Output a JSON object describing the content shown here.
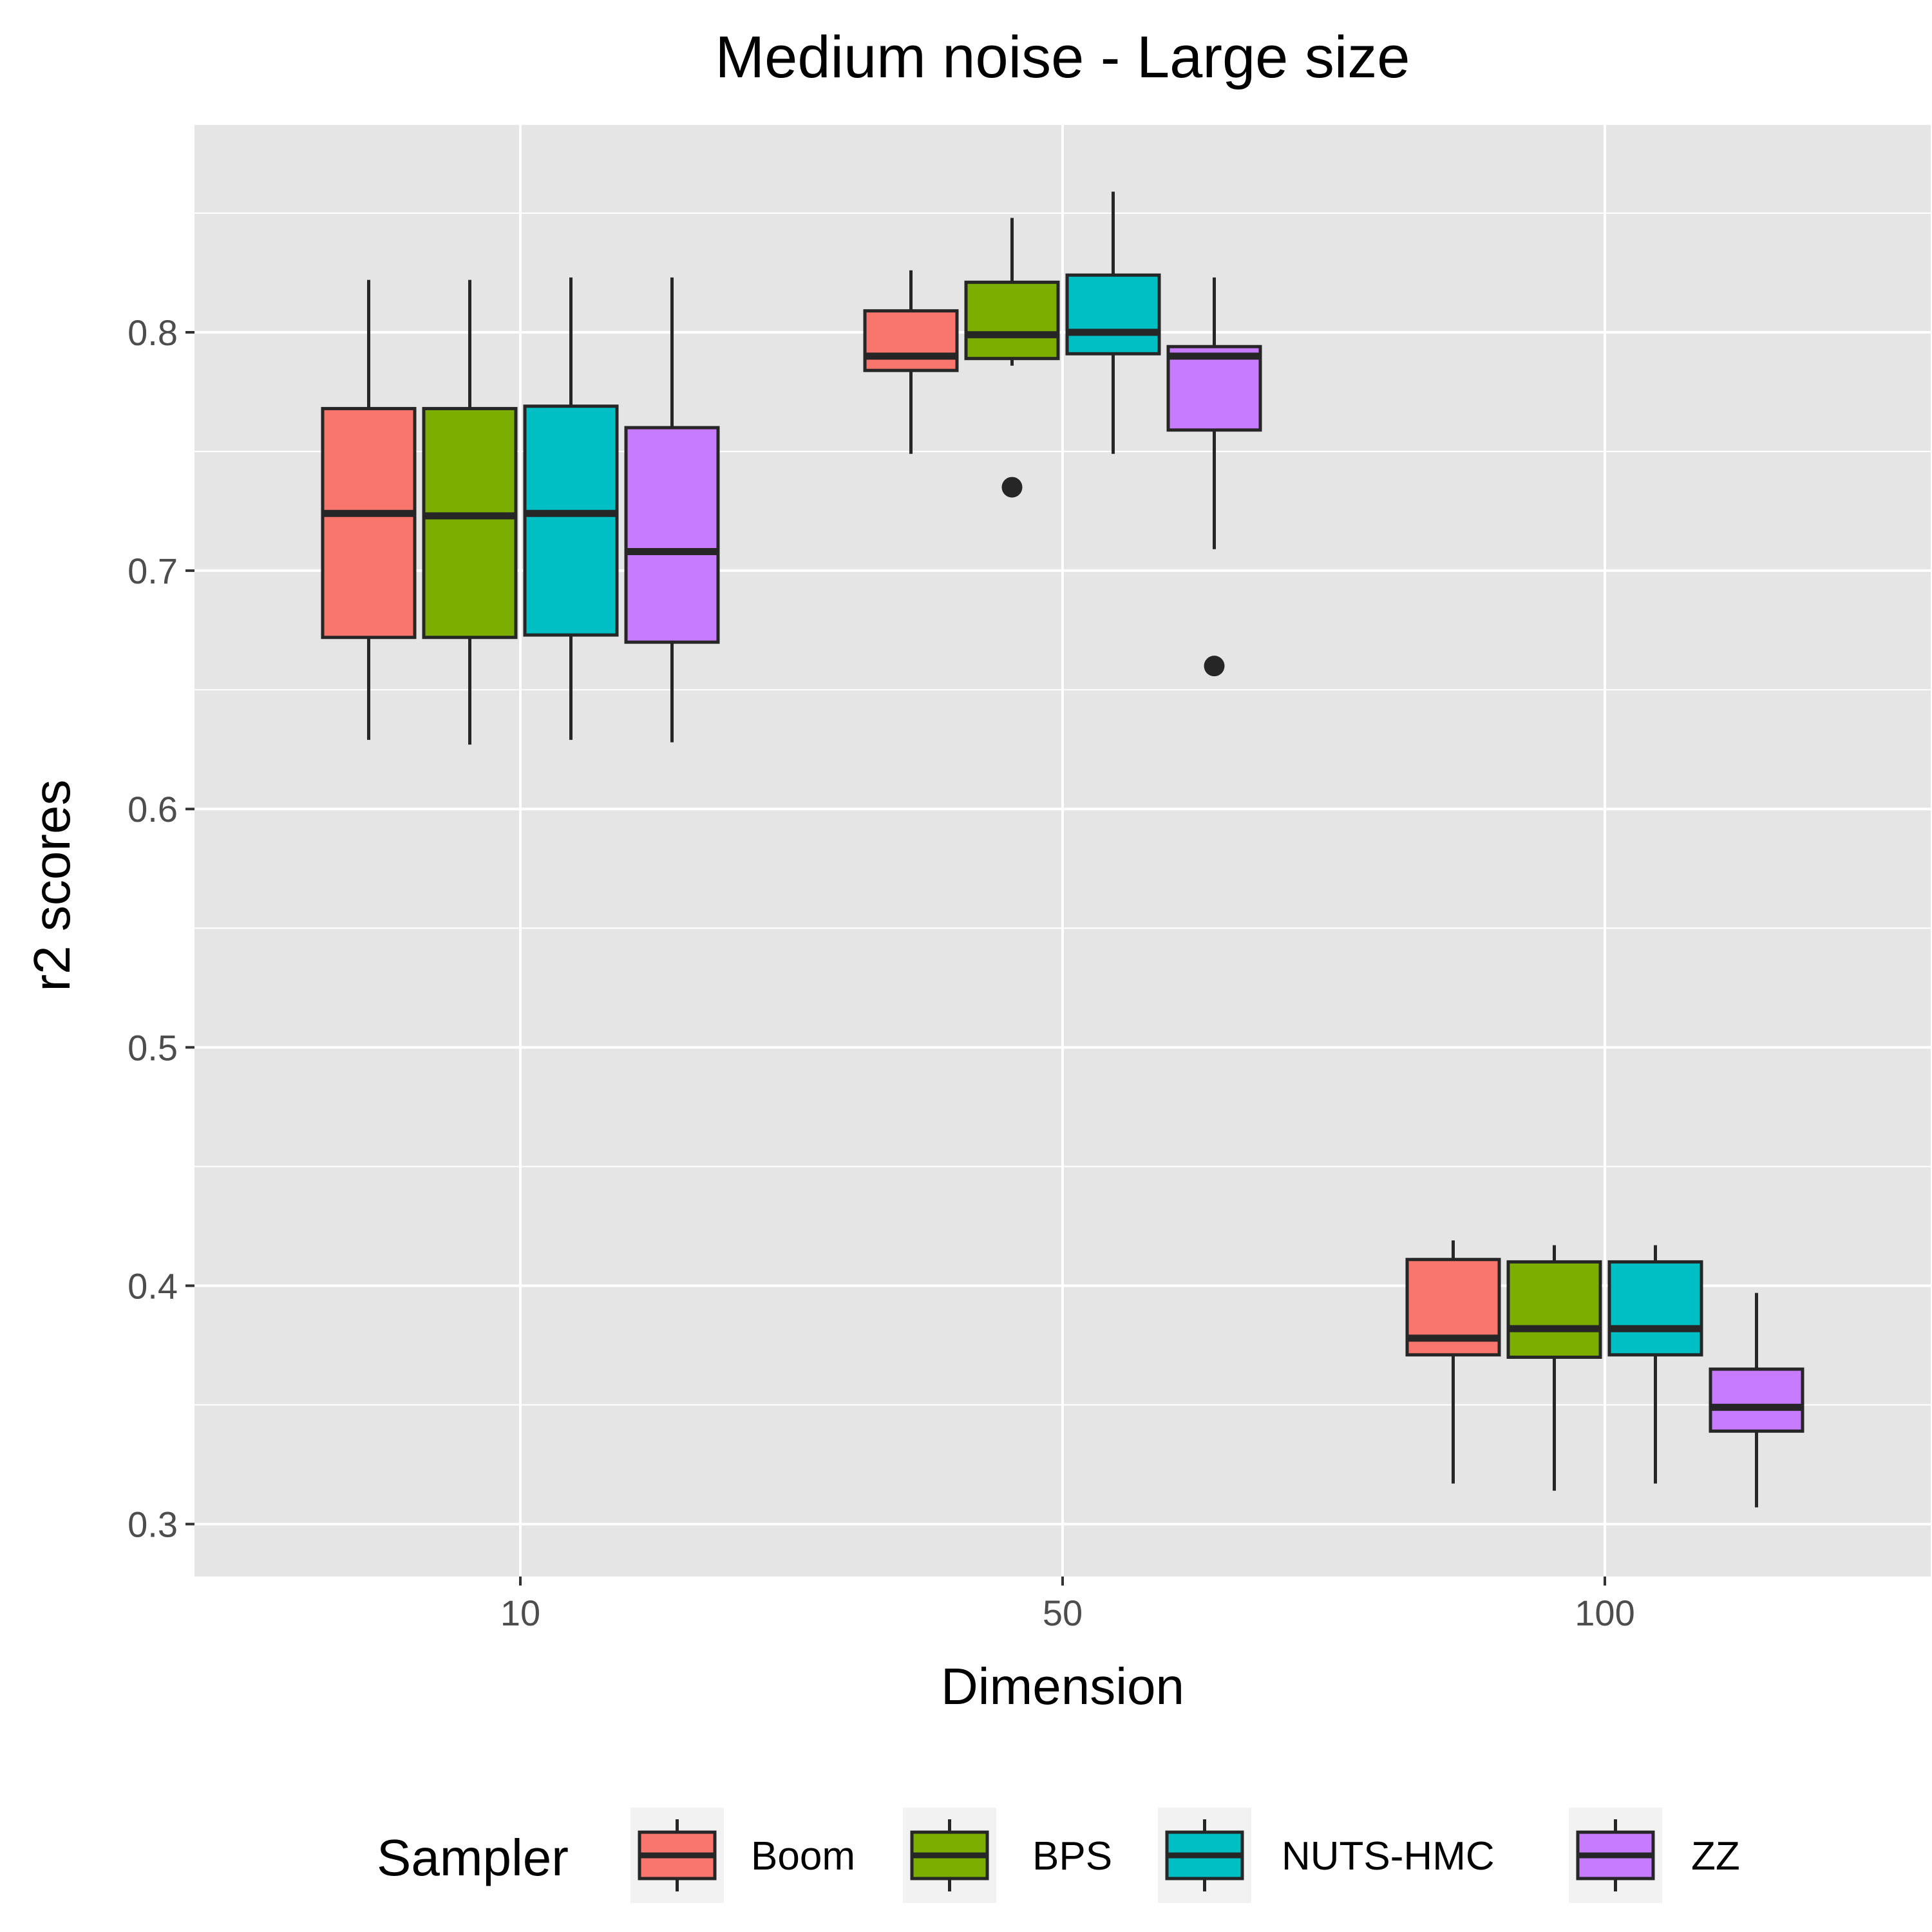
{
  "chart_data": {
    "type": "boxplot",
    "title": "Medium noise - Large size",
    "xlabel": "Dimension",
    "ylabel": "r2 scores",
    "categories": [
      "10",
      "50",
      "100"
    ],
    "ylim": [
      0.278,
      0.887
    ],
    "yticks": [
      "0.3",
      "0.4",
      "0.5",
      "0.6",
      "0.7",
      "0.8"
    ],
    "yticks_values": [
      0.3,
      0.4,
      0.5,
      0.6,
      0.7,
      0.8
    ],
    "grid": true,
    "legend": {
      "title": "Sampler",
      "position": "bottom",
      "entries": [
        "Boom",
        "BPS",
        "NUTS-HMC",
        "ZZ"
      ]
    },
    "series": [
      {
        "name": "Boom",
        "color": "#F8766D",
        "boxes": [
          {
            "min": 0.629,
            "q1": 0.672,
            "median": 0.724,
            "q3": 0.768,
            "max": 0.822,
            "outliers": []
          },
          {
            "min": 0.749,
            "q1": 0.784,
            "median": 0.79,
            "q3": 0.809,
            "max": 0.826,
            "outliers": []
          },
          {
            "min": 0.317,
            "q1": 0.371,
            "median": 0.378,
            "q3": 0.411,
            "max": 0.419,
            "outliers": []
          }
        ]
      },
      {
        "name": "BPS",
        "color": "#7CAE00",
        "boxes": [
          {
            "min": 0.627,
            "q1": 0.672,
            "median": 0.723,
            "q3": 0.768,
            "max": 0.822,
            "outliers": []
          },
          {
            "min": 0.786,
            "q1": 0.789,
            "median": 0.799,
            "q3": 0.821,
            "max": 0.848,
            "outliers": [
              0.735
            ]
          },
          {
            "min": 0.314,
            "q1": 0.37,
            "median": 0.382,
            "q3": 0.41,
            "max": 0.417,
            "outliers": []
          }
        ]
      },
      {
        "name": "NUTS-HMC",
        "color": "#00BFC4",
        "boxes": [
          {
            "min": 0.629,
            "q1": 0.673,
            "median": 0.724,
            "q3": 0.769,
            "max": 0.823,
            "outliers": []
          },
          {
            "min": 0.749,
            "q1": 0.791,
            "median": 0.8,
            "q3": 0.824,
            "max": 0.859,
            "outliers": []
          },
          {
            "min": 0.317,
            "q1": 0.371,
            "median": 0.382,
            "q3": 0.41,
            "max": 0.417,
            "outliers": []
          }
        ]
      },
      {
        "name": "ZZ",
        "color": "#C77CFF",
        "boxes": [
          {
            "min": 0.628,
            "q1": 0.67,
            "median": 0.708,
            "q3": 0.76,
            "max": 0.823,
            "outliers": []
          },
          {
            "min": 0.709,
            "q1": 0.759,
            "median": 0.79,
            "q3": 0.794,
            "max": 0.823,
            "outliers": [
              0.66
            ]
          },
          {
            "min": 0.307,
            "q1": 0.339,
            "median": 0.349,
            "q3": 0.365,
            "max": 0.397,
            "outliers": []
          }
        ]
      }
    ]
  }
}
